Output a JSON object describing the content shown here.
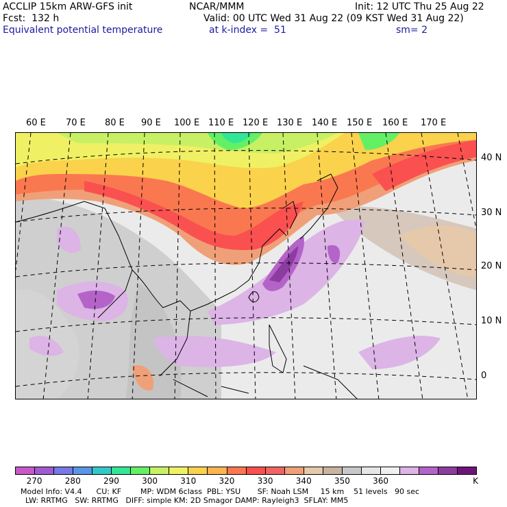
{
  "header": {
    "line1_left": "ACCLIP 15km ARW-GFS init",
    "line1_mid": "NCAR/MMM",
    "line1_right": "Init: 12 UTC Thu 25 Aug 22",
    "line2_left": "Fcst:  132 h",
    "line2_right": "Valid: 00 UTC Wed 31 Aug 22 (09 KST Wed 31 Aug 22)",
    "line3_left": "Equivalent potential temperature",
    "line3_mid": "at k-index =  51",
    "line3_right": "sm= 2"
  },
  "map": {
    "lon_labels": [
      "60 E",
      "70 E",
      "80 E",
      "90 E",
      "100 E",
      "110 E",
      "120 E",
      "130 E",
      "140 E",
      "150 E",
      "160 E",
      "170 E"
    ],
    "lat_labels": [
      "40 N",
      "30 N",
      "20 N",
      "10 N",
      "0"
    ]
  },
  "colorbar": {
    "colors": [
      "#c85ac8",
      "#a05ad2",
      "#7878e6",
      "#5a96e6",
      "#32c8c8",
      "#32e696",
      "#64f064",
      "#c8f064",
      "#f0f064",
      "#fad24b",
      "#fab450",
      "#fa7850",
      "#fa5050",
      "#f06464",
      "#f0a078",
      "#e6c8aa",
      "#c8b4a0",
      "#c8c8c8",
      "#e6e6e6",
      "#f0f0f0",
      "#dcb4e6",
      "#b464c8",
      "#8c3ca0",
      "#6e1478"
    ],
    "labels": [
      "270",
      "280",
      "290",
      "300",
      "310",
      "320",
      "330",
      "340",
      "350",
      "360",
      "K"
    ]
  },
  "footer": {
    "line1": "Model Info: V4.4      CU: KF        MP: WDM 6class  PBL: YSU       SF: Noah LSM     15 km    51 levels   90 sec",
    "line2": "  LW: RRTMG   SW: RRTMG   DIFF: simple KM: 2D Smagor DAMP: Rayleigh3  SFLAY: MM5"
  }
}
